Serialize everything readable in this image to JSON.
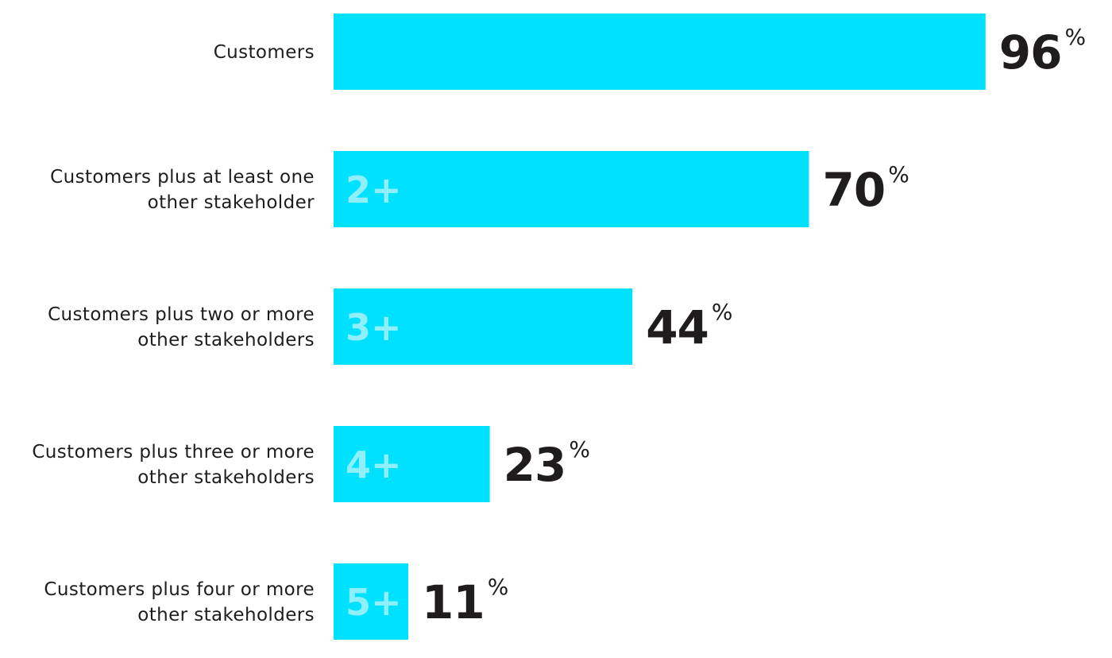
{
  "chart_data": {
    "type": "bar",
    "orientation": "horizontal",
    "categories": [
      [
        "Customers"
      ],
      [
        "Customers plus at least one",
        "other stakeholder"
      ],
      [
        "Customers plus two or more",
        "other stakeholders"
      ],
      [
        "Customers plus three or more",
        "other stakeholders"
      ],
      [
        "Customers plus four or more",
        "other stakeholders"
      ]
    ],
    "bar_tags": [
      "",
      "2+",
      "3+",
      "4+",
      "5+"
    ],
    "values": [
      96,
      70,
      44,
      23,
      11
    ],
    "value_suffix": "%",
    "xlim": [
      0,
      100
    ],
    "grid": false,
    "legend": "none",
    "colors": {
      "bar": "#00e1ff",
      "bar_tag": "#8ff0fb",
      "value_text": "#1f1c1d",
      "label_text": "#1f1c1d"
    }
  }
}
